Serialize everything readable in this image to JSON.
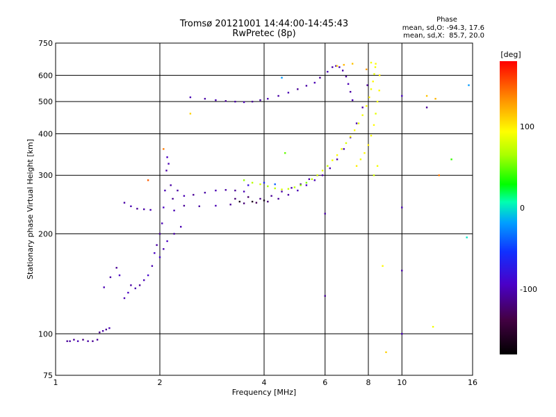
{
  "chart_data": {
    "type": "scatter",
    "title": "Tromsø 20121001 14:44:00-14:45:43",
    "subtitle": "RwPretec (8p)",
    "xlabel": "Frequency [MHz]",
    "ylabel": "Stationary phase Virtual Height [km]",
    "xscale": "log",
    "yscale": "log",
    "xlim": [
      1,
      16
    ],
    "ylim": [
      75,
      750
    ],
    "x_ticks": [
      1,
      2,
      4,
      6,
      8,
      10,
      16
    ],
    "x_tick_labels": [
      "1",
      "2",
      "4",
      "6",
      "8",
      "10",
      "16"
    ],
    "y_ticks": [
      75,
      100,
      200,
      300,
      400,
      500,
      600,
      750
    ],
    "y_tick_labels": [
      "75",
      "100",
      "200",
      "300",
      "400",
      "500",
      "600",
      "750"
    ],
    "grid": true,
    "stats": {
      "heading": "Phase",
      "line_o": "mean, sd,O: -94.3, 17.6",
      "line_x": "mean, sd,X:  85.7, 20.0"
    },
    "colorbar": {
      "label": "[deg]",
      "range": [
        -180,
        180
      ],
      "tick_values": [
        100,
        0,
        -100
      ],
      "tick_labels": [
        "100",
        "0",
        "-100"
      ]
    },
    "series": [
      {
        "points": [
          [
            1.08,
            95,
            -110
          ],
          [
            1.1,
            95,
            -105
          ],
          [
            1.13,
            96,
            -110
          ],
          [
            1.16,
            95,
            -100
          ],
          [
            1.2,
            96,
            -115
          ],
          [
            1.24,
            95,
            -105
          ],
          [
            1.28,
            95,
            -110
          ],
          [
            1.32,
            96,
            -108
          ],
          [
            1.34,
            101,
            -112
          ],
          [
            1.37,
            102,
            -105
          ],
          [
            1.4,
            103,
            -110
          ],
          [
            1.43,
            104,
            -100
          ],
          [
            1.38,
            138,
            -100
          ],
          [
            1.44,
            148,
            -105
          ],
          [
            1.5,
            158,
            -110
          ],
          [
            1.53,
            150,
            -95
          ],
          [
            1.58,
            128,
            -100
          ],
          [
            1.62,
            133,
            -95
          ],
          [
            1.65,
            140,
            -105
          ],
          [
            1.7,
            137,
            -100
          ],
          [
            1.75,
            140,
            -110
          ],
          [
            1.8,
            145,
            -100
          ],
          [
            1.85,
            150,
            -90
          ],
          [
            1.9,
            160,
            -100
          ],
          [
            1.93,
            175,
            -95
          ],
          [
            1.96,
            185,
            -105
          ],
          [
            2.0,
            200,
            -110
          ],
          [
            2.03,
            215,
            -100
          ],
          [
            2.05,
            240,
            -95
          ],
          [
            2.07,
            270,
            -100
          ],
          [
            2.09,
            310,
            -105
          ],
          [
            2.1,
            340,
            -95
          ],
          [
            2.12,
            325,
            -100
          ],
          [
            2.15,
            280,
            -105
          ],
          [
            2.18,
            255,
            -110
          ],
          [
            2.2,
            235,
            -100
          ],
          [
            2.0,
            170,
            -90
          ],
          [
            2.05,
            180,
            -100
          ],
          [
            2.1,
            190,
            -95
          ],
          [
            2.2,
            200,
            -105
          ],
          [
            2.3,
            210,
            -100
          ],
          [
            1.58,
            248,
            -105
          ],
          [
            1.65,
            242,
            -100
          ],
          [
            1.72,
            238,
            -110
          ],
          [
            1.8,
            237,
            -105
          ],
          [
            1.88,
            236,
            -100
          ],
          [
            2.25,
            270,
            -105
          ],
          [
            2.35,
            260,
            -100
          ],
          [
            2.5,
            262,
            -110
          ],
          [
            2.7,
            266,
            -105
          ],
          [
            2.9,
            270,
            -100
          ],
          [
            3.1,
            271,
            -105
          ],
          [
            3.3,
            270,
            -110
          ],
          [
            3.5,
            268,
            -100
          ],
          [
            2.35,
            243,
            -110
          ],
          [
            2.6,
            242,
            -105
          ],
          [
            2.9,
            243,
            -100
          ],
          [
            3.2,
            245,
            -110
          ],
          [
            3.5,
            247,
            -120
          ],
          [
            3.8,
            248,
            -130
          ],
          [
            4.1,
            250,
            -120
          ],
          [
            4.4,
            255,
            -110
          ],
          [
            4.7,
            262,
            -105
          ],
          [
            5.0,
            270,
            -100
          ],
          [
            5.3,
            280,
            -95
          ],
          [
            5.6,
            290,
            -100
          ],
          [
            5.9,
            300,
            -105
          ],
          [
            6.2,
            315,
            -100
          ],
          [
            6.5,
            335,
            -105
          ],
          [
            6.8,
            360,
            -100
          ],
          [
            7.1,
            390,
            -95
          ],
          [
            7.4,
            430,
            -100
          ],
          [
            7.7,
            480,
            -105
          ],
          [
            7.95,
            560,
            -110
          ],
          [
            3.3,
            255,
            -120
          ],
          [
            3.6,
            258,
            -125
          ],
          [
            3.9,
            255,
            -115
          ],
          [
            4.2,
            260,
            -110
          ],
          [
            4.5,
            268,
            -105
          ],
          [
            4.8,
            275,
            -100
          ],
          [
            5.1,
            282,
            -110
          ],
          [
            5.4,
            292,
            -105
          ],
          [
            5.7,
            300,
            -100
          ],
          [
            3.6,
            280,
            -80
          ],
          [
            4.0,
            285,
            -60
          ],
          [
            4.3,
            282,
            -40
          ],
          [
            2.45,
            515,
            -100
          ],
          [
            2.7,
            510,
            -105
          ],
          [
            2.9,
            505,
            -100
          ],
          [
            3.1,
            502,
            -110
          ],
          [
            3.3,
            500,
            -105
          ],
          [
            3.5,
            498,
            -100
          ],
          [
            3.7,
            500,
            -110
          ],
          [
            3.9,
            505,
            -105
          ],
          [
            4.1,
            510,
            -100
          ],
          [
            4.4,
            520,
            -105
          ],
          [
            4.7,
            532,
            -100
          ],
          [
            5.0,
            545,
            -110
          ],
          [
            5.3,
            558,
            -105
          ],
          [
            5.6,
            570,
            -100
          ],
          [
            5.8,
            590,
            -110
          ],
          [
            6.1,
            615,
            -100
          ],
          [
            6.3,
            635,
            -105
          ],
          [
            6.45,
            640,
            -95
          ],
          [
            6.6,
            635,
            -100
          ],
          [
            6.75,
            620,
            -105
          ],
          [
            6.9,
            595,
            -110
          ],
          [
            7.0,
            565,
            -100
          ],
          [
            7.1,
            535,
            -105
          ],
          [
            7.2,
            505,
            -100
          ]
        ]
      },
      {
        "points": [
          [
            3.5,
            290,
            60
          ],
          [
            3.7,
            285,
            70
          ],
          [
            3.9,
            282,
            80
          ],
          [
            4.1,
            278,
            65
          ],
          [
            4.3,
            274,
            70
          ],
          [
            4.5,
            272,
            80
          ],
          [
            4.7,
            273,
            75
          ],
          [
            4.9,
            276,
            70
          ],
          [
            5.1,
            280,
            60
          ],
          [
            5.3,
            285,
            55
          ],
          [
            5.5,
            292,
            70
          ],
          [
            5.7,
            300,
            80
          ],
          [
            5.9,
            310,
            85
          ],
          [
            6.1,
            320,
            75
          ],
          [
            6.3,
            333,
            90
          ],
          [
            6.5,
            345,
            95
          ],
          [
            6.7,
            360,
            85
          ],
          [
            6.9,
            375,
            80
          ],
          [
            7.1,
            392,
            90
          ],
          [
            7.3,
            410,
            95
          ],
          [
            7.5,
            430,
            85
          ],
          [
            7.7,
            455,
            90
          ],
          [
            7.9,
            485,
            95
          ],
          [
            8.05,
            515,
            100
          ],
          [
            8.15,
            545,
            90
          ],
          [
            8.25,
            575,
            95
          ],
          [
            8.32,
            605,
            85
          ],
          [
            8.38,
            635,
            90
          ],
          [
            7.4,
            320,
            100
          ],
          [
            7.6,
            335,
            90
          ],
          [
            7.8,
            350,
            95
          ],
          [
            8.0,
            370,
            100
          ],
          [
            8.15,
            395,
            90
          ],
          [
            8.3,
            425,
            95
          ],
          [
            8.4,
            460,
            85
          ],
          [
            8.5,
            500,
            90
          ],
          [
            8.6,
            540,
            95
          ],
          [
            8.62,
            600,
            100
          ],
          [
            6.5,
            640,
            110
          ],
          [
            6.8,
            645,
            120
          ],
          [
            7.2,
            650,
            115
          ],
          [
            7.9,
            625,
            130
          ],
          [
            8.15,
            655,
            90
          ],
          [
            8.4,
            650,
            95
          ],
          [
            8.3,
            300,
            80
          ],
          [
            8.5,
            320,
            90
          ],
          [
            11.8,
            520,
            115
          ],
          [
            12.5,
            510,
            120
          ],
          [
            12.3,
            105,
            90
          ],
          [
            9.0,
            88,
            110
          ],
          [
            8.8,
            160,
            95
          ],
          [
            12.8,
            300,
            140
          ],
          [
            13.9,
            335,
            40
          ]
        ]
      },
      {
        "points": [
          [
            2.05,
            360,
            140
          ],
          [
            1.85,
            290,
            150
          ],
          [
            2.45,
            460,
            110
          ],
          [
            4.6,
            350,
            50
          ],
          [
            4.5,
            590,
            -20
          ],
          [
            10.0,
            520,
            -95
          ],
          [
            10.0,
            240,
            -100
          ],
          [
            10.0,
            155,
            -105
          ],
          [
            10.0,
            100,
            -100
          ],
          [
            6.0,
            130,
            -110
          ],
          [
            6.0,
            230,
            -105
          ],
          [
            11.8,
            480,
            -110
          ],
          [
            15.4,
            195,
            0
          ],
          [
            15.6,
            560,
            -20
          ],
          [
            3.4,
            250,
            -165
          ],
          [
            3.7,
            250,
            -160
          ],
          [
            4.0,
            252,
            -170
          ]
        ]
      }
    ]
  }
}
